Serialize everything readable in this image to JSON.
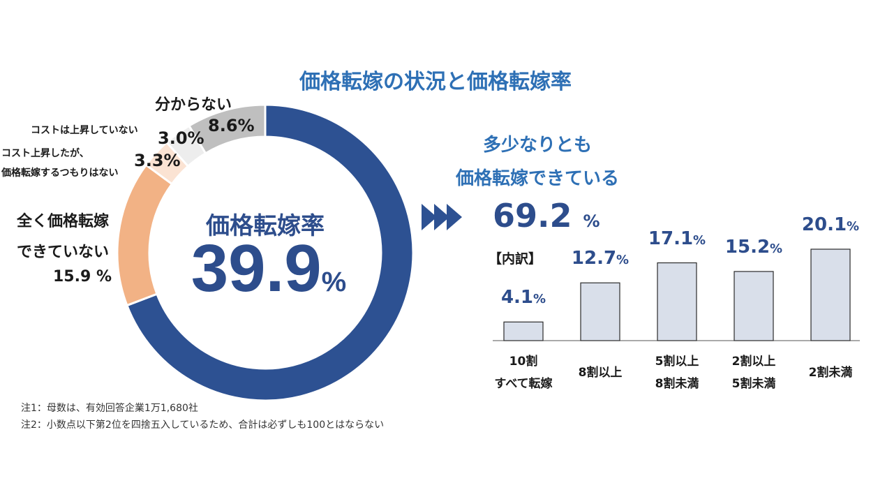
{
  "title": "価格転嫁の状況と価格転嫁率",
  "chart_data": [
    {
      "type": "pie",
      "center": {
        "label": "価格転嫁率",
        "value": "39.9",
        "unit": "%"
      },
      "slices": [
        {
          "label": "多少なりとも価格転嫁できている",
          "value": 69.2,
          "color": "#2d5192"
        },
        {
          "label": "全く価格転嫁できていない",
          "value": 15.9,
          "value_text": "15.9 %",
          "color": "#f2b285"
        },
        {
          "label": "コスト上昇したが、価格転嫁するつもりはない",
          "value": 3.3,
          "value_text": "3.3%",
          "color": "#fbe3d3"
        },
        {
          "label": "コストは上昇していない",
          "value": 3.0,
          "value_text": "3.0%",
          "color": "#ededed"
        },
        {
          "label": "分からない",
          "value": 8.6,
          "value_text": "8.6%",
          "color": "#bfbfbf"
        }
      ]
    },
    {
      "type": "bar",
      "heading": "多少なりとも価格転嫁できている",
      "heading_value": "69.2",
      "heading_unit": "%",
      "sub_label": "【内訳】",
      "categories": [
        "10割 すべて転嫁",
        "8割以上",
        "5割以上 8割未満",
        "2割以上 5割未満",
        "2割未満"
      ],
      "category_lines": [
        [
          "10割",
          "すべて転嫁"
        ],
        [
          "8割以上"
        ],
        [
          "5割以上",
          "8割未満"
        ],
        [
          "2割以上",
          "5割未満"
        ],
        [
          "2割未満"
        ]
      ],
      "values": [
        4.1,
        12.7,
        17.1,
        15.2,
        20.1
      ],
      "value_texts": [
        "4.1",
        "12.7",
        "17.1",
        "15.2",
        "20.1"
      ],
      "unit": "%",
      "bar_color": "#d9dfea"
    }
  ],
  "notes": [
    "注1：母数は、有効回答企業1万1,680社",
    "注2：小数点以下第2位を四捨五入しているため、合計は必ずしも100とはならない"
  ]
}
